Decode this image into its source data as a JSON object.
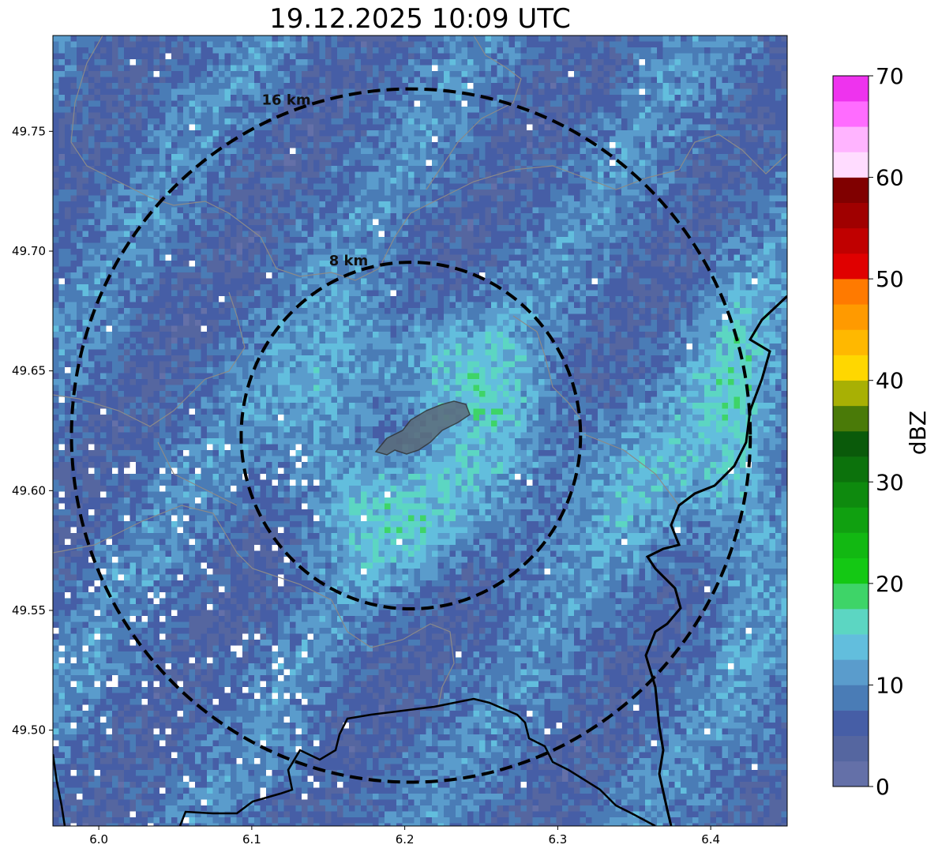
{
  "title": "19.12.2025 10:09 UTC",
  "map": {
    "lon_range": [
      5.97,
      6.45
    ],
    "lat_range": [
      49.46,
      49.79
    ],
    "center": {
      "lon": 6.204,
      "lat": 49.623
    },
    "x_ticks": [
      {
        "value": 6.0,
        "label": "6.0"
      },
      {
        "value": 6.1,
        "label": "6.1"
      },
      {
        "value": 6.2,
        "label": "6.2"
      },
      {
        "value": 6.3,
        "label": "6.3"
      },
      {
        "value": 6.4,
        "label": "6.4"
      }
    ],
    "y_ticks": [
      {
        "value": 49.5,
        "label": "49.50"
      },
      {
        "value": 49.55,
        "label": "49.55"
      },
      {
        "value": 49.6,
        "label": "49.60"
      },
      {
        "value": 49.65,
        "label": "49.65"
      },
      {
        "value": 49.7,
        "label": "49.70"
      },
      {
        "value": 49.75,
        "label": "49.75"
      }
    ],
    "range_rings": [
      {
        "radius_km": 8,
        "label": "8 km"
      },
      {
        "radius_km": 16,
        "label": "16 km"
      }
    ],
    "background_color": "#4a66a8",
    "ring_color": "#000000",
    "border_color": "#000000",
    "admin_boundary_color": "#8a8a8a",
    "city_fill": "#5b6b7a",
    "no_data_color": "#ffffff"
  },
  "colorbar": {
    "label": "dBZ",
    "min": 0,
    "max": 70,
    "step": 2.5,
    "ticks": [
      {
        "value": 0,
        "label": "0"
      },
      {
        "value": 10,
        "label": "10"
      },
      {
        "value": 20,
        "label": "20"
      },
      {
        "value": 30,
        "label": "30"
      },
      {
        "value": 40,
        "label": "40"
      },
      {
        "value": 50,
        "label": "50"
      },
      {
        "value": 60,
        "label": "60"
      },
      {
        "value": 70,
        "label": "70"
      }
    ],
    "colors": [
      "#6470a8",
      "#5566a0",
      "#465ea6",
      "#4a7cb6",
      "#5a9ccc",
      "#62bedd",
      "#5cd6c2",
      "#3ed468",
      "#14c814",
      "#12b812",
      "#10a010",
      "#0e8a0e",
      "#0c720c",
      "#0a5a0a",
      "#4a7a08",
      "#a8b004",
      "#ffd700",
      "#ffb800",
      "#ff9a00",
      "#ff7a00",
      "#e00000",
      "#c00000",
      "#a00000",
      "#800000",
      "#ffdcff",
      "#ffb4ff",
      "#ff6cff",
      "#ee33ee"
    ]
  }
}
